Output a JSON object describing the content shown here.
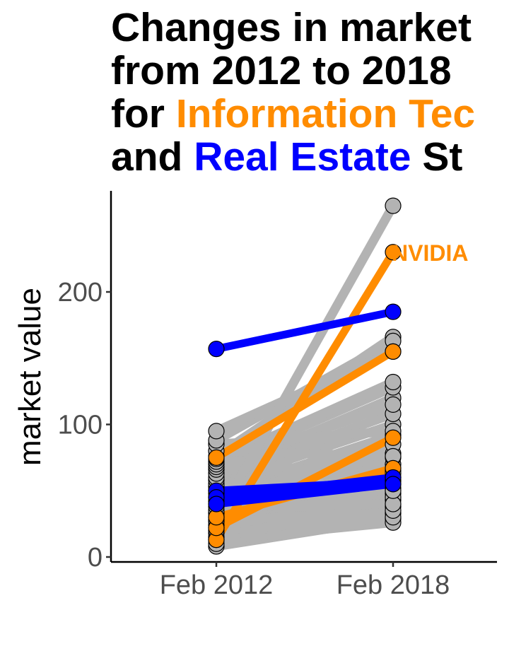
{
  "chart_data": {
    "type": "line",
    "title_lines": [
      [
        {
          "text": "Changes in market "
        }
      ],
      [
        {
          "text": "from 2012 to 2018 "
        }
      ],
      [
        {
          "text": "for "
        },
        {
          "text": "Information Tec",
          "color_key": "it"
        }
      ],
      [
        {
          "text": "and "
        },
        {
          "text": "Real Estate",
          "color_key": "re"
        },
        {
          "text": " St"
        }
      ]
    ],
    "ylabel": "market value",
    "xlabel": "",
    "categories": [
      "Feb 2012",
      "Feb 2018"
    ],
    "yticks": [
      0,
      100,
      200
    ],
    "ylim": [
      0,
      270
    ],
    "grid": false,
    "colors": {
      "it": "#ff8c00",
      "re": "#0000ff",
      "other": "#b3b3b3",
      "point_stroke": "#000000"
    },
    "series_other": [
      [
        8,
        29
      ],
      [
        10,
        33
      ],
      [
        13,
        26
      ],
      [
        15,
        38
      ],
      [
        18,
        43
      ],
      [
        20,
        30
      ],
      [
        22,
        48
      ],
      [
        24,
        55
      ],
      [
        27,
        35
      ],
      [
        30,
        52
      ],
      [
        33,
        60
      ],
      [
        35,
        45
      ],
      [
        38,
        40
      ],
      [
        40,
        65
      ],
      [
        42,
        78
      ],
      [
        45,
        50
      ],
      [
        48,
        92
      ],
      [
        50,
        70
      ],
      [
        53,
        85
      ],
      [
        55,
        100
      ],
      [
        58,
        75
      ],
      [
        60,
        108
      ],
      [
        63,
        120
      ],
      [
        66,
        63
      ],
      [
        68,
        115
      ],
      [
        70,
        128
      ],
      [
        72,
        132
      ],
      [
        74,
        58
      ],
      [
        76,
        166
      ],
      [
        80,
        76
      ],
      [
        85,
        95
      ],
      [
        88,
        163
      ],
      [
        95,
        155
      ],
      [
        28,
        265
      ]
    ],
    "series_it": [
      [
        13,
        230
      ],
      [
        75,
        155
      ],
      [
        22,
        90
      ],
      [
        30,
        67
      ]
    ],
    "series_re": [
      [
        157,
        185
      ],
      [
        50,
        57
      ],
      [
        45,
        60
      ],
      [
        40,
        55
      ]
    ],
    "annotations": [
      {
        "text": "NVIDIA",
        "series": "it",
        "index": 0,
        "color_key": "it"
      }
    ]
  }
}
